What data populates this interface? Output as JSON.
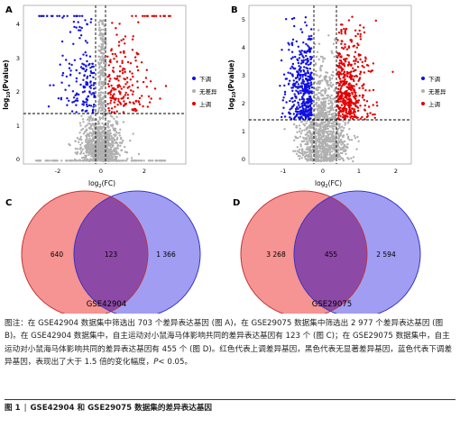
{
  "panels": {
    "A": {
      "label": "A",
      "title": "",
      "ylabel_main": "log",
      "ylabel_sub": "10",
      "ylabel_paren": "(Pvalue)",
      "xlabel_main": "log",
      "xlabel_sub": "2",
      "xlabel_paren": "(FC)",
      "xticks": [
        -2,
        -1,
        0,
        1,
        2,
        3
      ],
      "xtick_labels": [
        "-2",
        "0",
        "2"
      ],
      "yticks": [
        "0",
        "1",
        "2",
        "3",
        "4"
      ],
      "legend": [
        "下调",
        "无差异",
        "上调"
      ]
    },
    "B": {
      "label": "B",
      "ylabel_main": "log",
      "ylabel_sub": "10",
      "ylabel_paren": "(Pvalue)",
      "xlabel_main": "log",
      "xlabel_sub": "2",
      "xlabel_paren": "(FC)",
      "xtick_labels": [
        "-1",
        "0",
        "1",
        "2"
      ],
      "yticks": [
        "0",
        "1",
        "2",
        "3",
        "4",
        "5"
      ],
      "legend": [
        "下调",
        "无差异",
        "上调"
      ]
    },
    "C": {
      "label": "C",
      "left_value": "640",
      "overlap_value": "123",
      "right_value": "1 366",
      "dataset": "GSE42904"
    },
    "D": {
      "label": "D",
      "left_value": "3 268",
      "overlap_value": "455",
      "right_value": "2 594",
      "dataset": "GSE29075"
    }
  },
  "colors": {
    "down": "#1010e0",
    "nosig": "#b0b0b0",
    "up": "#e00000",
    "venn_left": "#f58080",
    "venn_right": "#8a85f0",
    "venn_overlap": "#8c4aa6"
  },
  "caption": {
    "body_1": "图注：在 GSE42904 数据集中筛选出 703 个差异表达基因 (图 A)，在 GSE29075 数据集中筛选出 2 977 个差异表达基因 (图 B)。在 GSE42904 数据集中，自主运动对小鼠海马体影响共同的差异表达基因有 123 个 (图 C)；在 GSE29075 数据集中，自主运动对小鼠海马体影响共同的差异表达基因有 455 个 (图 D)。红色代表上调差异基因，黑色代表无显著差异基因，蓝色代表下调差异基因，表现出了大于 1.5 倍的变化幅度，",
    "body_p": "P",
    "body_2": "< 0.05。",
    "fig": "图 1",
    "sep": "|",
    "title": "GSE42904 和 GSE29075 数据集的差异表达基因"
  }
}
